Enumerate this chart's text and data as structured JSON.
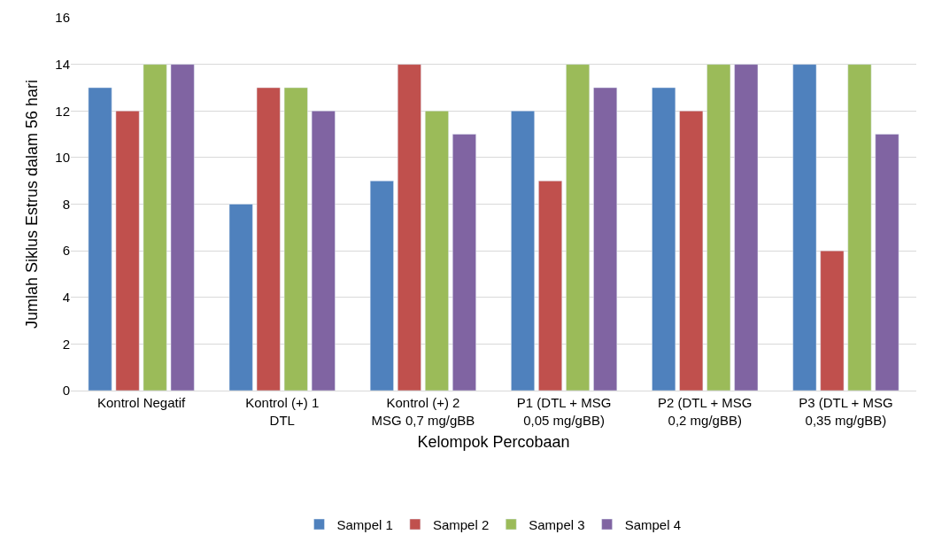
{
  "chart_data": {
    "type": "bar",
    "xlabel": "Kelompok Percobaan",
    "ylabel": "Jumlah Siklus Estrus dalam 56 hari",
    "categories": [
      "Kontrol Negatif",
      "Kontrol (+) 1 DTL",
      "Kontrol (+) 2 MSG 0,7 mg/gBB",
      "P1 (DTL + MSG 0,05 mg/gBB)",
      "P2 (DTL + MSG 0,2 mg/gBB)",
      "P3 (DTL + MSG 0,35 mg/gBB)"
    ],
    "series": [
      {
        "name": "Sampel 1",
        "color": "#4f81bd",
        "values": [
          13,
          8,
          9,
          12,
          13,
          14
        ]
      },
      {
        "name": "Sampel 2",
        "color": "#c0504d",
        "values": [
          12,
          13,
          14,
          9,
          12,
          6
        ]
      },
      {
        "name": "Sampel 3",
        "color": "#9bbb59",
        "values": [
          14,
          13,
          12,
          14,
          14,
          14
        ]
      },
      {
        "name": "Sampel 4",
        "color": "#8064a2",
        "values": [
          14,
          12,
          11,
          13,
          14,
          11
        ]
      }
    ],
    "ylim": [
      0,
      16
    ],
    "yticks": [
      0,
      2,
      4,
      6,
      8,
      10,
      12,
      14,
      16
    ],
    "grid": "y",
    "legend": "bottom"
  }
}
